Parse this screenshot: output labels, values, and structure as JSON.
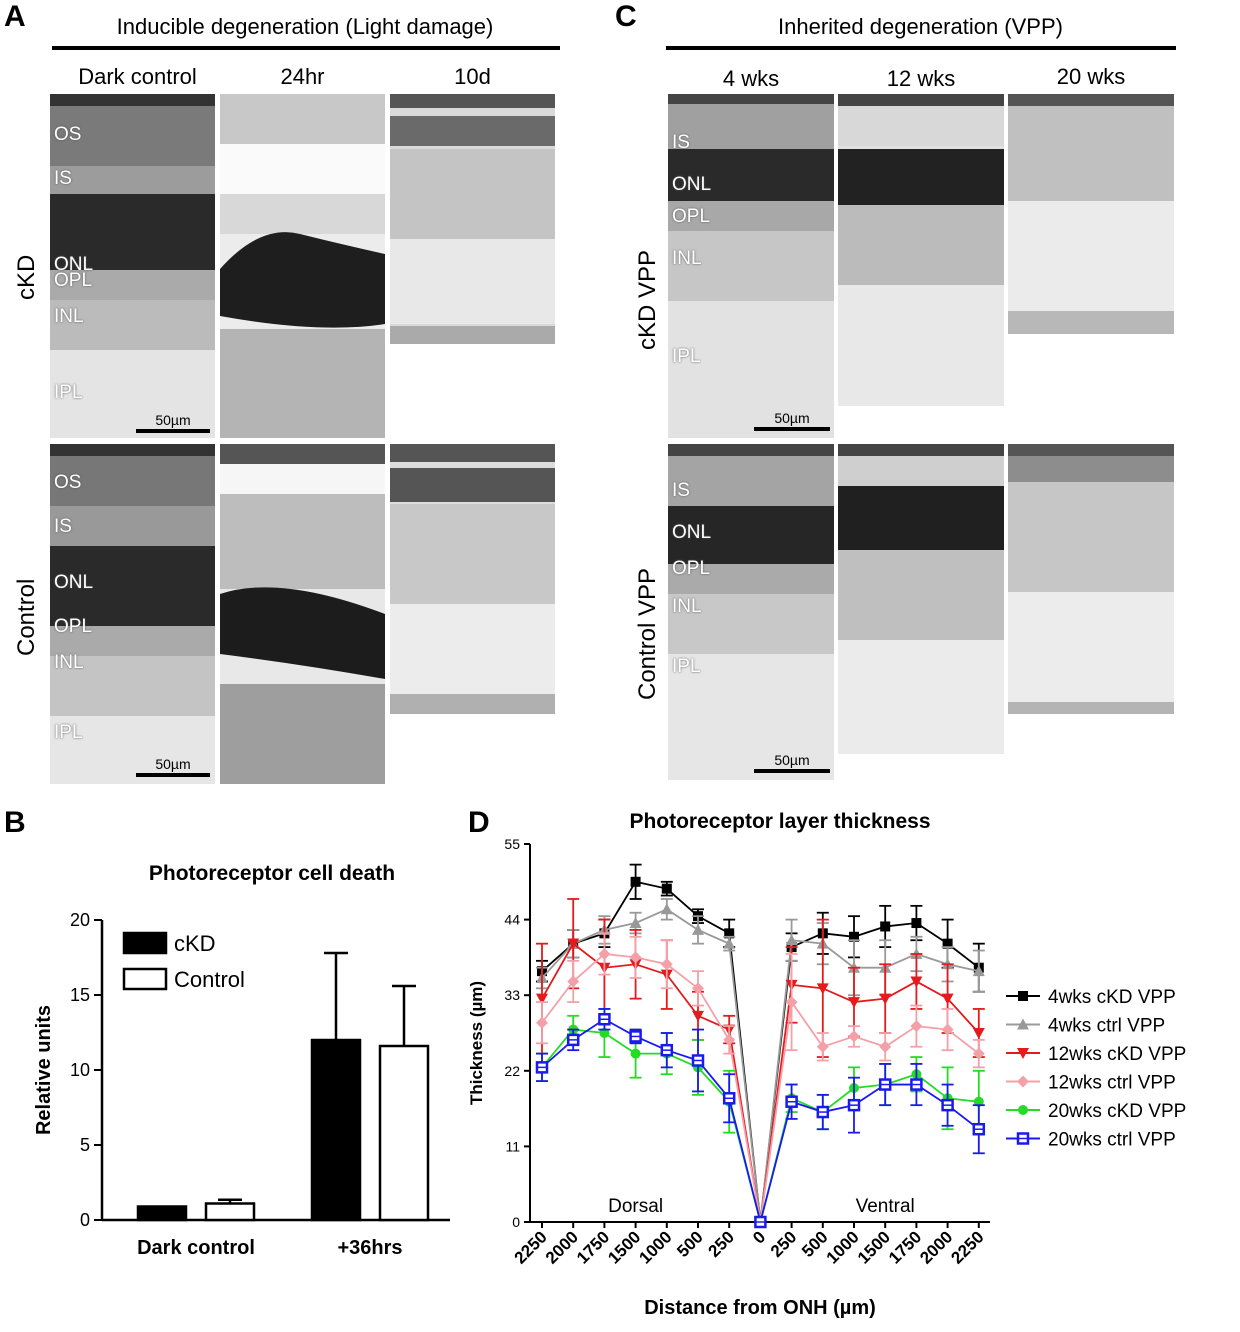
{
  "panel_labels": {
    "a": "A",
    "b": "B",
    "c": "C",
    "d": "D"
  },
  "panel_a": {
    "header": "Inducible degeneration (Light damage)",
    "columns": [
      "Dark control",
      "24hr",
      "10d"
    ],
    "rows": [
      "cKD",
      "Control"
    ],
    "layers_top": [
      "OS",
      "IS",
      "ONL",
      "OPL",
      "INL",
      "IPL"
    ],
    "layers_bottom": [
      "OS",
      "IS",
      "ONL",
      "OPL",
      "INL",
      "IPL"
    ],
    "scale_bar": "50µm"
  },
  "panel_c": {
    "header": "Inherited degeneration (VPP)",
    "columns": [
      "4 wks",
      "12 wks",
      "20 wks"
    ],
    "rows": [
      "cKD VPP",
      "Control VPP"
    ],
    "layers": [
      "IS",
      "ONL",
      "OPL",
      "INL",
      "IPL"
    ],
    "scale_bar": "50µm"
  },
  "colors": {
    "black": "#000000",
    "gray": "#999999",
    "red": "#e41a1c",
    "pink": "#f4a0a8",
    "green": "#22dd22",
    "blue": "#1a1aee"
  },
  "chart_data": [
    {
      "type": "bar",
      "title": "Photoreceptor cell death",
      "ylabel": "Relative units",
      "xlabel": "",
      "categories": [
        "Dark control",
        "+36hrs"
      ],
      "ylim": [
        0,
        20
      ],
      "yticks": [
        0,
        5,
        10,
        15,
        20
      ],
      "legend_position": "top-left",
      "series": [
        {
          "name": "cKD",
          "fill": "#000000",
          "values": [
            0.9,
            12.0
          ],
          "errors": [
            0.0,
            5.8
          ]
        },
        {
          "name": "Control",
          "fill": "#ffffff",
          "values": [
            1.1,
            11.6
          ],
          "errors": [
            0.25,
            4.0
          ]
        }
      ]
    },
    {
      "type": "line",
      "title": "Photoreceptor layer thickness",
      "ylabel": "Thickness (µm)",
      "xlabel": "Distance from ONH (µm)",
      "x": [
        "2250",
        "2000",
        "1750",
        "1500",
        "1000",
        "500",
        "250",
        "0",
        "250",
        "500",
        "1000",
        "1500",
        "1750",
        "2000",
        "2250"
      ],
      "regions": [
        "Dorsal",
        "Ventral"
      ],
      "ylim": [
        0,
        55
      ],
      "yticks": [
        0,
        11,
        22,
        33,
        44,
        55
      ],
      "legend_position": "right",
      "series": [
        {
          "name": "4wks cKD VPP",
          "color": "#000000",
          "marker": "square",
          "values": [
            36.5,
            40.5,
            42,
            49.5,
            48.5,
            44.5,
            42,
            0,
            40,
            42,
            41.5,
            43,
            43.5,
            40.5,
            37
          ],
          "errors": [
            1.5,
            2,
            2,
            2.5,
            1,
            1,
            2,
            0,
            2,
            3,
            3,
            3,
            2.5,
            3.5,
            3.5
          ]
        },
        {
          "name": "4wks ctrl VPP",
          "color": "#999999",
          "marker": "triangle",
          "values": [
            35.5,
            40.5,
            42.5,
            43.5,
            45.5,
            42.5,
            40.5,
            0,
            41,
            40.5,
            37,
            37,
            39,
            37.5,
            36.5
          ],
          "errors": [
            1.5,
            2,
            2,
            1.5,
            1.5,
            2,
            1,
            0,
            3,
            3,
            4,
            4,
            2.5,
            2.5,
            3
          ]
        },
        {
          "name": "12wks cKD VPP",
          "color": "#e41a1c",
          "marker": "tri-down",
          "values": [
            32.5,
            40.5,
            37,
            37.5,
            36,
            30,
            28,
            0,
            34.5,
            34,
            32,
            32.5,
            35,
            32.5,
            27.5
          ],
          "errors": [
            8,
            6.5,
            7,
            5,
            5,
            3.5,
            2,
            0,
            5.5,
            10,
            5,
            5,
            4,
            5,
            3.5
          ]
        },
        {
          "name": "12wks ctrl VPP",
          "color": "#f4a0a8",
          "marker": "diamond",
          "values": [
            29,
            35,
            39,
            38.5,
            37.5,
            34,
            26.5,
            0,
            32,
            25.5,
            27,
            25.5,
            28.5,
            28,
            24.5
          ],
          "errors": [
            3,
            3,
            3,
            3,
            3.5,
            2.5,
            2,
            0,
            7,
            2,
            1.5,
            2,
            3,
            3,
            2
          ]
        },
        {
          "name": "20wks cKD VPP",
          "color": "#22dd22",
          "marker": "circle",
          "values": [
            22.5,
            28,
            27.5,
            24.5,
            24.5,
            22.5,
            17.5,
            0,
            18,
            16,
            19.5,
            20,
            21.5,
            18,
            17.5
          ],
          "errors": [
            2,
            2,
            3.5,
            3.5,
            3,
            4,
            4.5,
            0,
            2,
            2.5,
            3,
            3,
            2.5,
            4.5,
            4.5
          ]
        },
        {
          "name": "20wks ctrl VPP",
          "color": "#1a1aee",
          "marker": "square-open",
          "values": [
            22.5,
            26.5,
            29.5,
            27,
            25,
            23.5,
            18,
            0,
            17.5,
            16,
            17,
            20,
            20,
            17,
            13.5
          ],
          "errors": [
            2,
            1.5,
            1.5,
            1,
            2.5,
            4.5,
            3.5,
            0,
            2.5,
            2.5,
            4,
            3,
            3,
            3,
            3.5
          ]
        }
      ]
    }
  ]
}
